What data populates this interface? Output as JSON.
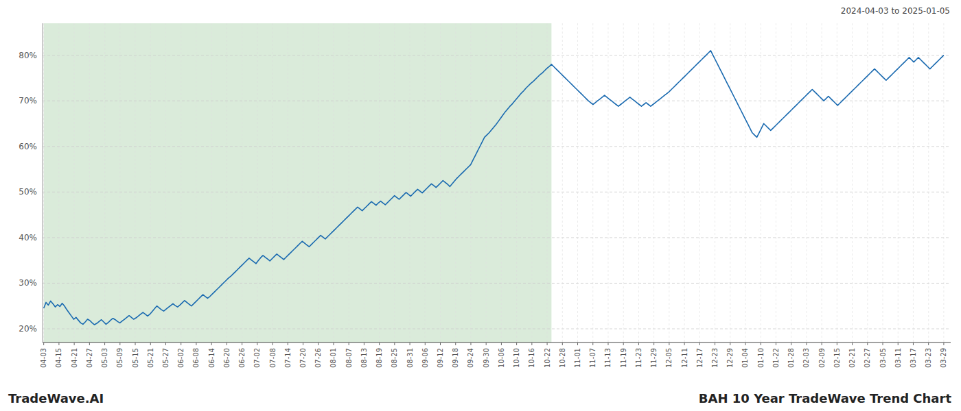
{
  "chart_data": {
    "type": "line",
    "title": "BAH 10 Year TradeWave Trend Chart",
    "subtitle": "2024-04-03 to 2025-01-05",
    "annotations": [
      "TradeWave.AI"
    ],
    "color": "#1a6ab0",
    "grid": true,
    "ylim": [
      17,
      87
    ],
    "yticks": [
      {
        "value": 20,
        "label": "20%"
      },
      {
        "value": 30,
        "label": "30%"
      },
      {
        "value": 40,
        "label": "40%"
      },
      {
        "value": 50,
        "label": "50%"
      },
      {
        "value": 60,
        "label": "60%"
      },
      {
        "value": 70,
        "label": "70%"
      },
      {
        "value": 80,
        "label": "80%"
      }
    ],
    "xlim": [
      -0.5,
      393
    ],
    "xticks": [
      {
        "value": 0,
        "label": "04-03"
      },
      {
        "value": 6.61,
        "label": "04-15"
      },
      {
        "value": 13.22,
        "label": "04-21"
      },
      {
        "value": 19.831,
        "label": "04-27"
      },
      {
        "value": 26.441,
        "label": "05-03"
      },
      {
        "value": 33.051,
        "label": "05-09"
      },
      {
        "value": 39.661,
        "label": "05-15"
      },
      {
        "value": 46.271,
        "label": "05-21"
      },
      {
        "value": 52.881,
        "label": "05-27"
      },
      {
        "value": 59.492,
        "label": "06-02"
      },
      {
        "value": 66.102,
        "label": "06-08"
      },
      {
        "value": 72.712,
        "label": "06-14"
      },
      {
        "value": 79.322,
        "label": "06-20"
      },
      {
        "value": 85.932,
        "label": "06-26"
      },
      {
        "value": 92.542,
        "label": "07-02"
      },
      {
        "value": 99.153,
        "label": "07-08"
      },
      {
        "value": 105.763,
        "label": "07-14"
      },
      {
        "value": 112.373,
        "label": "07-20"
      },
      {
        "value": 118.983,
        "label": "07-26"
      },
      {
        "value": 125.593,
        "label": "08-01"
      },
      {
        "value": 132.203,
        "label": "08-07"
      },
      {
        "value": 138.814,
        "label": "08-13"
      },
      {
        "value": 145.424,
        "label": "08-19"
      },
      {
        "value": 152.034,
        "label": "08-25"
      },
      {
        "value": 158.644,
        "label": "08-31"
      },
      {
        "value": 165.254,
        "label": "09-06"
      },
      {
        "value": 171.864,
        "label": "09-12"
      },
      {
        "value": 178.475,
        "label": "09-18"
      },
      {
        "value": 185.085,
        "label": "09-24"
      },
      {
        "value": 191.695,
        "label": "09-30"
      },
      {
        "value": 198.305,
        "label": "10-06"
      },
      {
        "value": 204.915,
        "label": "10-10"
      },
      {
        "value": 211.525,
        "label": "10-16"
      },
      {
        "value": 218.136,
        "label": "10-22"
      },
      {
        "value": 224.746,
        "label": "10-28"
      },
      {
        "value": 231.356,
        "label": "11-01"
      },
      {
        "value": 237.966,
        "label": "11-07"
      },
      {
        "value": 244.576,
        "label": "11-13"
      },
      {
        "value": 251.186,
        "label": "11-19"
      },
      {
        "value": 257.797,
        "label": "11-23"
      },
      {
        "value": 264.407,
        "label": "11-29"
      },
      {
        "value": 271.017,
        "label": "12-05"
      },
      {
        "value": 277.627,
        "label": "12-11"
      },
      {
        "value": 284.237,
        "label": "12-17"
      },
      {
        "value": 290.847,
        "label": "12-23"
      },
      {
        "value": 297.458,
        "label": "12-29"
      },
      {
        "value": 304.068,
        "label": "01-04"
      },
      {
        "value": 310.678,
        "label": "01-10"
      },
      {
        "value": 317.288,
        "label": "01-22"
      },
      {
        "value": 323.898,
        "label": "01-28"
      },
      {
        "value": 330.508,
        "label": "02-03"
      },
      {
        "value": 337.119,
        "label": "02-09"
      },
      {
        "value": 343.729,
        "label": "02-15"
      },
      {
        "value": 350.339,
        "label": "02-21"
      },
      {
        "value": 356.949,
        "label": "02-27"
      },
      {
        "value": 363.559,
        "label": "03-05"
      },
      {
        "value": 370.169,
        "label": "03-11"
      },
      {
        "value": 376.78,
        "label": "03-17"
      },
      {
        "value": 383.39,
        "label": "03-23"
      },
      {
        "value": 390,
        "label": "03-29"
      }
    ],
    "shaded_region": {
      "x": [
        0,
        220
      ],
      "color": "#d4e8d4"
    },
    "values": [
      24.5,
      25.8,
      25.2,
      26.1,
      25.5,
      24.8,
      25.3,
      24.9,
      25.6,
      25.0,
      24.2,
      23.5,
      22.8,
      22.1,
      22.5,
      21.9,
      21.3,
      21.0,
      21.5,
      22.1,
      21.8,
      21.3,
      20.9,
      21.2,
      21.6,
      22.0,
      21.5,
      21.0,
      21.4,
      21.9,
      22.3,
      22.0,
      21.6,
      21.3,
      21.7,
      22.1,
      22.5,
      22.9,
      22.5,
      22.1,
      22.4,
      22.8,
      23.2,
      23.6,
      23.2,
      22.8,
      23.2,
      23.8,
      24.4,
      25.0,
      24.6,
      24.2,
      23.9,
      24.3,
      24.7,
      25.1,
      25.5,
      25.1,
      24.8,
      25.2,
      25.7,
      26.2,
      25.8,
      25.4,
      25.0,
      25.5,
      26.0,
      26.5,
      27.0,
      27.5,
      27.1,
      26.7,
      27.1,
      27.6,
      28.1,
      28.6,
      29.1,
      29.6,
      30.1,
      30.6,
      31.1,
      31.5,
      32.0,
      32.5,
      33.0,
      33.5,
      34.0,
      34.5,
      35.0,
      35.5,
      35.1,
      34.7,
      34.3,
      35.0,
      35.6,
      36.1,
      35.7,
      35.3,
      34.9,
      35.4,
      35.9,
      36.4,
      36.0,
      35.6,
      35.2,
      35.7,
      36.2,
      36.7,
      37.2,
      37.7,
      38.2,
      38.7,
      39.2,
      38.8,
      38.4,
      38.0,
      38.5,
      39.0,
      39.5,
      40.0,
      40.5,
      40.1,
      39.7,
      40.2,
      40.7,
      41.2,
      41.7,
      42.2,
      42.7,
      43.2,
      43.7,
      44.2,
      44.7,
      45.2,
      45.7,
      46.2,
      46.7,
      46.3,
      45.9,
      46.4,
      46.9,
      47.4,
      47.9,
      47.5,
      47.1,
      47.6,
      48.0,
      47.6,
      47.2,
      47.7,
      48.2,
      48.7,
      49.2,
      48.8,
      48.4,
      48.9,
      49.4,
      49.9,
      49.5,
      49.1,
      49.6,
      50.1,
      50.6,
      50.2,
      49.8,
      50.3,
      50.8,
      51.3,
      51.8,
      51.4,
      51.0,
      51.5,
      52.0,
      52.5,
      52.1,
      51.7,
      51.2,
      51.8,
      52.4,
      53.0,
      53.5,
      54.0,
      54.5,
      55.0,
      55.5,
      56.0,
      57.0,
      58.0,
      59.0,
      60.0,
      61.0,
      62.0,
      62.5,
      63.0,
      63.6,
      64.2,
      64.8,
      65.5,
      66.2,
      66.9,
      67.6,
      68.2,
      68.8,
      69.3,
      69.9,
      70.5,
      71.1,
      71.7,
      72.2,
      72.8,
      73.3,
      73.8,
      74.2,
      74.7,
      75.2,
      75.7,
      76.1,
      76.6,
      77.1,
      77.5,
      78.0,
      77.5,
      77.0,
      76.5,
      76.0,
      75.5,
      75.0,
      74.5,
      74.0,
      73.5,
      73.0,
      72.5,
      72.0,
      71.5,
      71.0,
      70.5,
      70.0,
      69.6,
      69.2,
      69.6,
      70.0,
      70.4,
      70.8,
      71.2,
      70.8,
      70.4,
      70.0,
      69.6,
      69.2,
      68.8,
      69.2,
      69.6,
      70.0,
      70.4,
      70.8,
      70.4,
      70.0,
      69.6,
      69.2,
      68.8,
      69.2,
      69.6,
      69.2,
      68.8,
      69.2,
      69.6,
      70.0,
      70.4,
      70.8,
      71.2,
      71.6,
      72.0,
      72.5,
      73.0,
      73.5,
      74.0,
      74.5,
      75.0,
      75.5,
      76.0,
      76.5,
      77.0,
      77.5,
      78.0,
      78.5,
      79.0,
      79.5,
      80.0,
      80.5,
      81.0,
      80.0,
      79.0,
      78.0,
      77.0,
      76.0,
      75.0,
      74.0,
      73.0,
      72.0,
      71.0,
      70.0,
      69.0,
      68.0,
      67.0,
      66.0,
      65.0,
      64.0,
      63.0,
      62.5,
      62.0,
      63.0,
      64.0,
      65.0,
      64.5,
      64.0,
      63.5,
      64.0,
      64.5,
      65.0,
      65.5,
      66.0,
      66.5,
      67.0,
      67.5,
      68.0,
      68.5,
      69.0,
      69.5,
      70.0,
      70.5,
      71.0,
      71.5,
      72.0,
      72.5,
      72.0,
      71.5,
      71.0,
      70.5,
      70.0,
      70.5,
      71.0,
      70.5,
      70.0,
      69.5,
      69.0,
      69.5,
      70.0,
      70.5,
      71.0,
      71.5,
      72.0,
      72.5,
      73.0,
      73.5,
      74.0,
      74.5,
      75.0,
      75.5,
      76.0,
      76.5,
      77.0,
      76.5,
      76.0,
      75.5,
      75.0,
      74.5,
      75.0,
      75.5,
      76.0,
      76.5,
      77.0,
      77.5,
      78.0,
      78.5,
      79.0,
      79.5,
      79.0,
      78.5,
      79.0,
      79.5,
      79.0,
      78.5,
      78.0,
      77.5,
      77.0,
      77.5,
      78.0,
      78.5,
      79.0,
      79.5,
      80.0
    ]
  }
}
